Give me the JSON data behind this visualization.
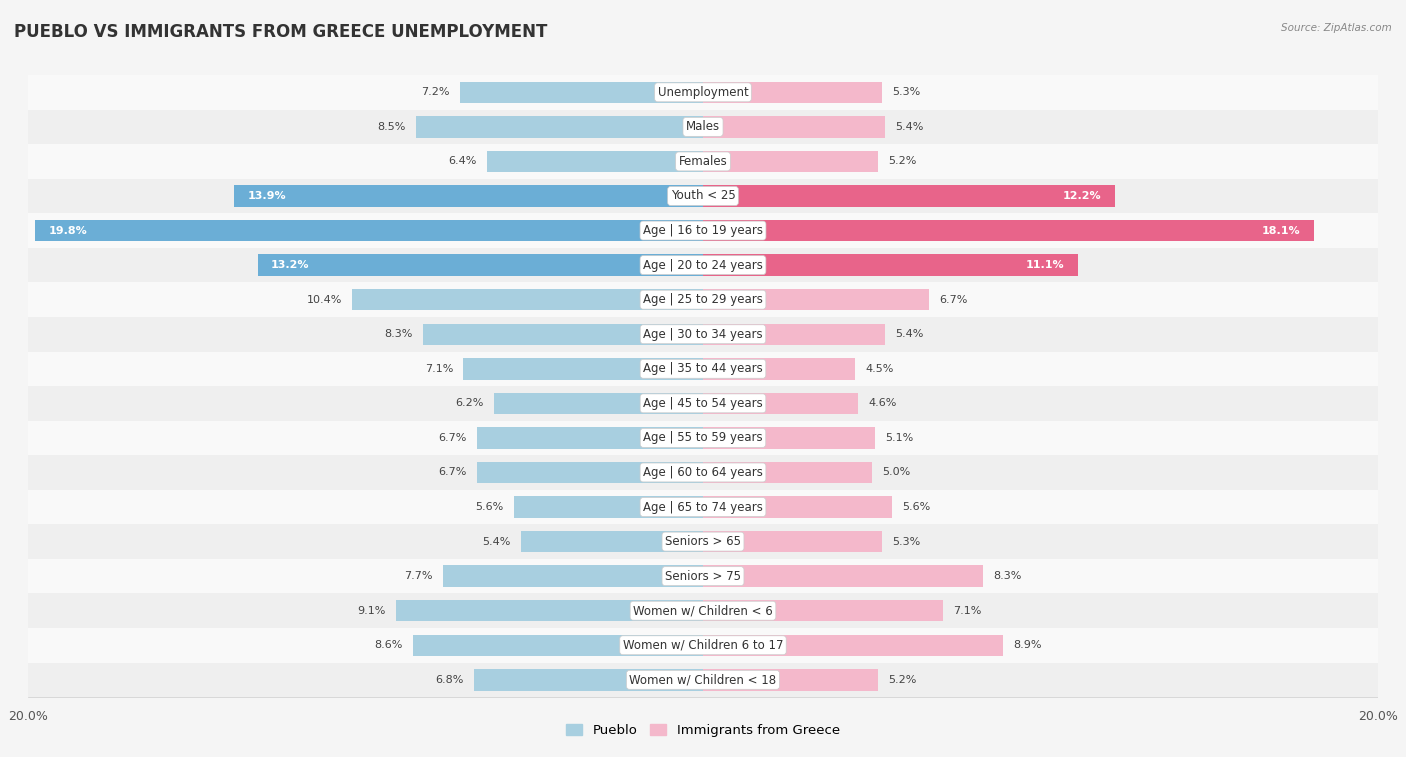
{
  "title": "PUEBLO VS IMMIGRANTS FROM GREECE UNEMPLOYMENT",
  "source": "Source: ZipAtlas.com",
  "categories": [
    "Unemployment",
    "Males",
    "Females",
    "Youth < 25",
    "Age | 16 to 19 years",
    "Age | 20 to 24 years",
    "Age | 25 to 29 years",
    "Age | 30 to 34 years",
    "Age | 35 to 44 years",
    "Age | 45 to 54 years",
    "Age | 55 to 59 years",
    "Age | 60 to 64 years",
    "Age | 65 to 74 years",
    "Seniors > 65",
    "Seniors > 75",
    "Women w/ Children < 6",
    "Women w/ Children 6 to 17",
    "Women w/ Children < 18"
  ],
  "pueblo_values": [
    7.2,
    8.5,
    6.4,
    13.9,
    19.8,
    13.2,
    10.4,
    8.3,
    7.1,
    6.2,
    6.7,
    6.7,
    5.6,
    5.4,
    7.7,
    9.1,
    8.6,
    6.8
  ],
  "greece_values": [
    5.3,
    5.4,
    5.2,
    12.2,
    18.1,
    11.1,
    6.7,
    5.4,
    4.5,
    4.6,
    5.1,
    5.0,
    5.6,
    5.3,
    8.3,
    7.1,
    8.9,
    5.2
  ],
  "pueblo_color_normal": "#a8cfe0",
  "pueblo_color_highlight": "#6baed6",
  "greece_color_normal": "#f4b8cb",
  "greece_color_highlight": "#e8648a",
  "max_value": 20.0,
  "row_bg_light": "#f9f9f9",
  "row_bg_dark": "#efefef",
  "highlight_rows": [
    3,
    4,
    5
  ],
  "label_fontsize": 8.5,
  "title_fontsize": 12,
  "value_fontsize": 8,
  "legend_fontsize": 9.5
}
